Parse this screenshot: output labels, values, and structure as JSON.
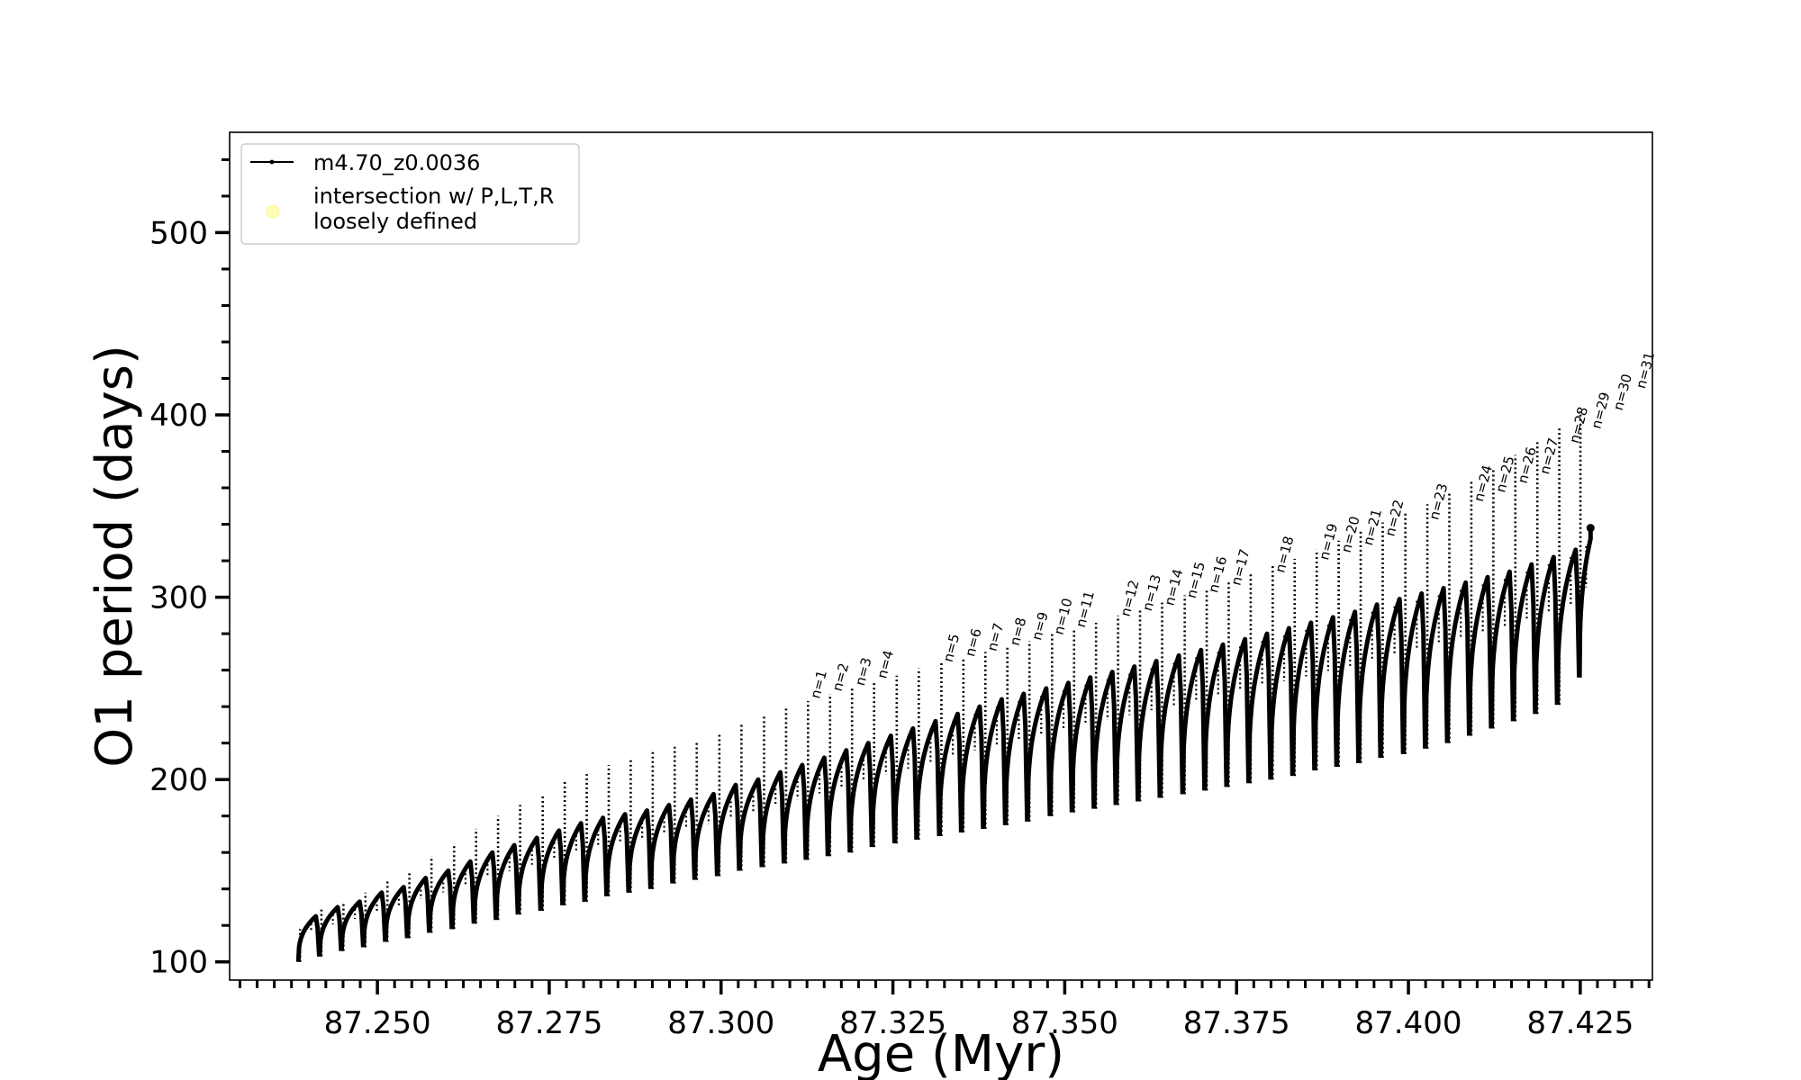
{
  "chart_data": {
    "type": "line",
    "xlabel": "Age (Myr)",
    "ylabel": "O1 period (days)",
    "xlim": [
      87.2285,
      87.4355
    ],
    "ylim": [
      90,
      555
    ],
    "x_ticks": [
      "87.250",
      "87.275",
      "87.300",
      "87.325",
      "87.350",
      "87.375",
      "87.400",
      "87.425"
    ],
    "x_tick_values": [
      87.25,
      87.275,
      87.3,
      87.325,
      87.35,
      87.375,
      87.4,
      87.425
    ],
    "y_ticks": [
      "100",
      "200",
      "300",
      "400",
      "500"
    ],
    "y_tick_values": [
      100,
      200,
      300,
      400,
      500
    ],
    "legend": {
      "placement": "top-left",
      "entries": [
        {
          "label": "m4.70_z0.0036",
          "marker": "line-with-dots",
          "color": "#000000"
        },
        {
          "label_lines": [
            "intersection w/ P,L,T,R",
            "loosely defined"
          ],
          "marker": "circle",
          "color": "#ffffb3"
        }
      ]
    },
    "series": [
      {
        "name": "m4.70_z0.0036",
        "color": "#000000",
        "cycle_start_ages": [
          87.2385,
          87.2416,
          87.2448,
          87.248,
          87.2512,
          87.2544,
          87.2576,
          87.2609,
          87.2641,
          87.2673,
          87.2705,
          87.2738,
          87.277,
          87.2802,
          87.2834,
          87.2866,
          87.2898,
          87.293,
          87.2962,
          87.2995,
          87.3027,
          87.306,
          87.3092,
          87.3124,
          87.3156,
          87.3188,
          87.322,
          87.3253,
          87.3285,
          87.3318,
          87.335,
          87.3382,
          87.3414,
          87.3446,
          87.3479,
          87.3511,
          87.3543,
          87.3575,
          87.3607,
          87.3639,
          87.3672,
          87.3704,
          87.3736,
          87.3768,
          87.38,
          87.3832,
          87.3864,
          87.3896,
          87.3928,
          87.396,
          87.3993,
          87.4025,
          87.4057,
          87.4089,
          87.4121,
          87.4153,
          87.4185,
          87.4217,
          87.4249
        ],
        "cycle_min_periods": [
          100,
          103,
          106,
          108,
          111,
          113,
          116,
          118,
          121,
          123,
          126,
          128,
          131,
          133,
          136,
          138,
          140,
          143,
          145,
          147,
          150,
          152,
          154,
          156,
          158,
          160,
          163,
          165,
          167,
          169,
          171,
          173,
          175,
          177,
          180,
          182,
          184,
          186,
          188,
          190,
          192,
          194,
          196,
          198,
          200,
          202,
          205,
          207,
          209,
          212,
          214,
          217,
          220,
          224,
          228,
          232,
          236,
          241,
          256
        ],
        "cycle_peak_periods": [
          125,
          130,
          133,
          138,
          141,
          146,
          150,
          155,
          160,
          164,
          168,
          172,
          176,
          179,
          181,
          183,
          186,
          189,
          192,
          197,
          200,
          204,
          208,
          212,
          216,
          220,
          224,
          228,
          232,
          236,
          240,
          244,
          247,
          250,
          253,
          256,
          259,
          262,
          265,
          268,
          271,
          274,
          277,
          280,
          283,
          286,
          289,
          292,
          296,
          299,
          302,
          305,
          308,
          311,
          314,
          318,
          322,
          326,
          332
        ],
        "cycle_spike_periods": [
          118,
          130,
          133,
          138,
          145,
          150,
          158,
          165,
          173,
          180,
          186,
          192,
          199,
          203,
          208,
          212,
          215,
          218,
          221,
          226,
          230,
          235,
          239,
          243,
          247,
          251,
          254,
          257,
          261,
          264,
          267,
          270,
          273,
          276,
          280,
          283,
          286,
          290,
          293,
          297,
          301,
          305,
          309,
          313,
          317,
          321,
          326,
          331,
          336,
          341,
          346,
          351,
          357,
          364,
          371,
          378,
          385,
          393,
          402
        ],
        "final_period": 338,
        "final_age": 87.4265
      }
    ],
    "annotations": [
      {
        "text": "n=1",
        "x": 87.3143,
        "y": 244
      },
      {
        "text": "n=2",
        "x": 87.3175,
        "y": 248
      },
      {
        "text": "n=3",
        "x": 87.3208,
        "y": 251
      },
      {
        "text": "n=4",
        "x": 87.324,
        "y": 255
      },
      {
        "text": "n=5",
        "x": 87.3336,
        "y": 264
      },
      {
        "text": "n=6",
        "x": 87.3368,
        "y": 267
      },
      {
        "text": "n=7",
        "x": 87.34,
        "y": 270
      },
      {
        "text": "n=8",
        "x": 87.3433,
        "y": 273
      },
      {
        "text": "n=9",
        "x": 87.3465,
        "y": 276
      },
      {
        "text": "n=10",
        "x": 87.3497,
        "y": 279
      },
      {
        "text": "n=11",
        "x": 87.3529,
        "y": 283
      },
      {
        "text": "n=12",
        "x": 87.3594,
        "y": 289
      },
      {
        "text": "n=13",
        "x": 87.3626,
        "y": 292
      },
      {
        "text": "n=14",
        "x": 87.3658,
        "y": 295
      },
      {
        "text": "n=15",
        "x": 87.369,
        "y": 299
      },
      {
        "text": "n=16",
        "x": 87.3722,
        "y": 302
      },
      {
        "text": "n=17",
        "x": 87.3755,
        "y": 306
      },
      {
        "text": "n=18",
        "x": 87.3819,
        "y": 313
      },
      {
        "text": "n=19",
        "x": 87.3883,
        "y": 320
      },
      {
        "text": "n=20",
        "x": 87.3915,
        "y": 324
      },
      {
        "text": "n=21",
        "x": 87.3947,
        "y": 328
      },
      {
        "text": "n=22",
        "x": 87.3979,
        "y": 333
      },
      {
        "text": "n=23",
        "x": 87.4043,
        "y": 342
      },
      {
        "text": "n=24",
        "x": 87.4108,
        "y": 352
      },
      {
        "text": "n=25",
        "x": 87.414,
        "y": 357
      },
      {
        "text": "n=26",
        "x": 87.4172,
        "y": 362
      },
      {
        "text": "n=27",
        "x": 87.4204,
        "y": 367
      },
      {
        "text": "n=28",
        "x": 87.4247,
        "y": 384
      },
      {
        "text": "n=29",
        "x": 87.4279,
        "y": 392
      },
      {
        "text": "n=30",
        "x": 87.4311,
        "y": 402
      },
      {
        "text": "n=31",
        "x": 87.4344,
        "y": 414
      }
    ]
  }
}
